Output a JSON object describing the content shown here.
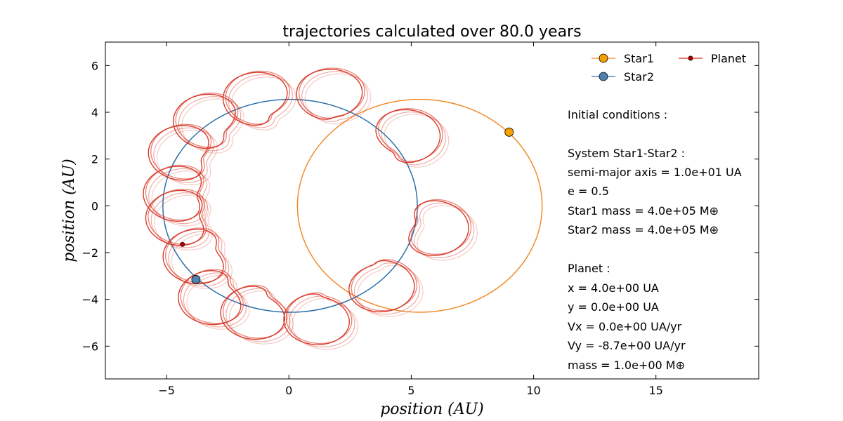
{
  "chart_data": {
    "type": "line",
    "title": "trajectories calculated over 80.0 years",
    "xlabel": "position (AU)",
    "ylabel": "position (AU)",
    "xlim": [
      -7.5,
      19.2
    ],
    "ylim": [
      -7.4,
      7
    ],
    "xticks": [
      -5,
      0,
      5,
      10,
      15
    ],
    "xtick_labels": [
      "−5",
      "0",
      "5",
      "10",
      "15"
    ],
    "yticks": [
      -6,
      -4,
      -2,
      0,
      2,
      4,
      6
    ],
    "ytick_labels": [
      "−6",
      "−4",
      "−2",
      "0",
      "2",
      "4",
      "6"
    ],
    "grid": false,
    "legend_position": "top-right",
    "colors": {
      "star1": "#f28b2b",
      "star1_marker": "#f5a000",
      "star2": "#2d6faa",
      "star2_marker": "#4f81b0",
      "planet": "#d7301f"
    },
    "series": [
      {
        "name": "Star1",
        "orbit": {
          "center": [
            5.35,
            0.0
          ],
          "semi_axis_x": 5.0,
          "semi_axis_y": 4.55
        },
        "current_position": [
          9.0,
          3.15
        ]
      },
      {
        "name": "Star2",
        "orbit": {
          "center": [
            0.05,
            0.0
          ],
          "semi_axis_x": 5.2,
          "semi_axis_y": 4.55
        },
        "current_position": [
          -3.8,
          -3.15
        ]
      },
      {
        "name": "Planet",
        "loop_centers": [
          [
            -4.3,
            -0.5
          ],
          [
            -4.4,
            0.5
          ],
          [
            -4.2,
            2.2
          ],
          [
            -3.2,
            3.5
          ],
          [
            -1.2,
            4.4
          ],
          [
            1.7,
            4.5
          ],
          [
            4.7,
            2.8
          ],
          [
            5.8,
            -0.9
          ],
          [
            3.7,
            -3.2
          ],
          [
            1.2,
            -4.6
          ],
          [
            -1.3,
            -4.4
          ],
          [
            -3.0,
            -3.8
          ],
          [
            -3.6,
            -2.1
          ]
        ],
        "current_position": [
          -4.35,
          -1.65
        ]
      }
    ],
    "annotations": [
      "Initial conditions :",
      "",
      "System Star1-Star2 :",
      "semi-major axis = 1.0e+01 UA",
      "e = 0.5",
      "Star1 mass = 4.0e+05 M⊕",
      "Star2 mass = 4.0e+05 M⊕",
      "",
      "Planet :",
      "x = 4.0e+00 UA",
      "y = 0.0e+00 UA",
      "Vx = 0.0e+00 UA/yr",
      "Vy = -8.7e+00 UA/yr",
      "mass = 1.0e+00 M⊕"
    ]
  }
}
